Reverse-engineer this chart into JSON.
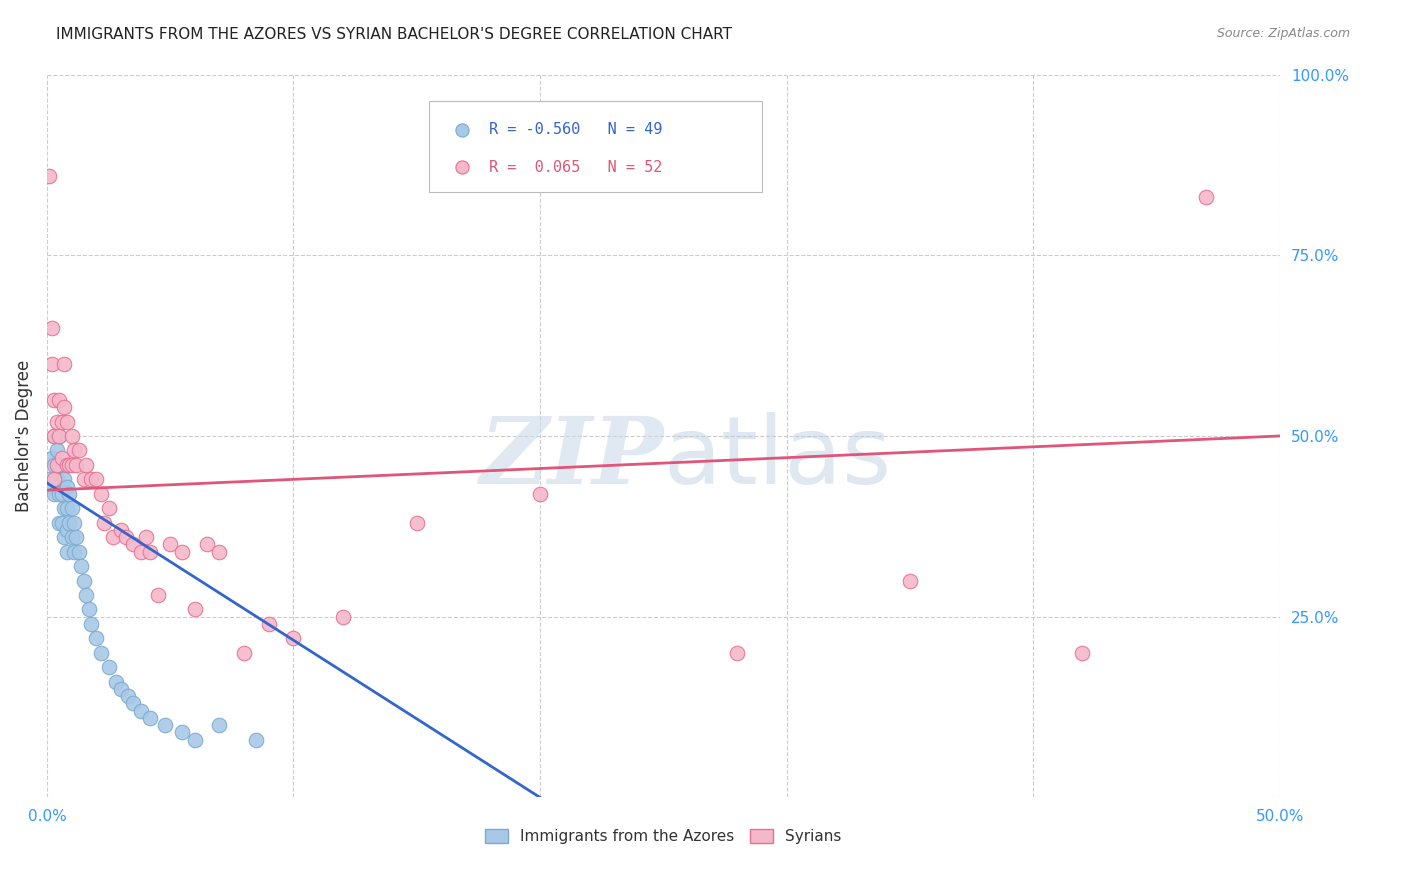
{
  "title": "IMMIGRANTS FROM THE AZORES VS SYRIAN BACHELOR'S DEGREE CORRELATION CHART",
  "source": "Source: ZipAtlas.com",
  "ylabel": "Bachelor's Degree",
  "xlim": [
    0.0,
    0.5
  ],
  "ylim": [
    0.0,
    1.0
  ],
  "yticks": [
    0.0,
    0.25,
    0.5,
    0.75,
    1.0
  ],
  "ytick_labels": [
    "",
    "25.0%",
    "50.0%",
    "75.0%",
    "100.0%"
  ],
  "xticks": [
    0.0,
    0.1,
    0.2,
    0.3,
    0.4,
    0.5
  ],
  "xtick_labels": [
    "0.0%",
    "",
    "",
    "",
    "",
    "50.0%"
  ],
  "azores_color": "#a8c8e8",
  "azores_edge_color": "#7aabce",
  "syrian_color": "#f5b8cb",
  "syrian_edge_color": "#e8708e",
  "azores_R": -0.56,
  "azores_N": 49,
  "syrian_R": 0.065,
  "syrian_N": 52,
  "azores_line_color": "#3366cc",
  "syrian_line_color": "#e05578",
  "background_color": "#ffffff",
  "grid_color": "#cccccc",
  "axis_tick_color": "#3399ff",
  "azores_scatter_x": [
    0.001,
    0.002,
    0.002,
    0.003,
    0.003,
    0.003,
    0.004,
    0.004,
    0.005,
    0.005,
    0.005,
    0.005,
    0.006,
    0.006,
    0.006,
    0.007,
    0.007,
    0.007,
    0.008,
    0.008,
    0.008,
    0.008,
    0.009,
    0.009,
    0.01,
    0.01,
    0.011,
    0.011,
    0.012,
    0.013,
    0.014,
    0.015,
    0.016,
    0.017,
    0.018,
    0.02,
    0.022,
    0.025,
    0.028,
    0.03,
    0.033,
    0.035,
    0.038,
    0.042,
    0.048,
    0.055,
    0.06,
    0.07,
    0.085
  ],
  "azores_scatter_y": [
    0.44,
    0.47,
    0.43,
    0.5,
    0.46,
    0.42,
    0.48,
    0.44,
    0.5,
    0.46,
    0.42,
    0.38,
    0.46,
    0.42,
    0.38,
    0.44,
    0.4,
    0.36,
    0.43,
    0.4,
    0.37,
    0.34,
    0.42,
    0.38,
    0.4,
    0.36,
    0.38,
    0.34,
    0.36,
    0.34,
    0.32,
    0.3,
    0.28,
    0.26,
    0.24,
    0.22,
    0.2,
    0.18,
    0.16,
    0.15,
    0.14,
    0.13,
    0.12,
    0.11,
    0.1,
    0.09,
    0.08,
    0.1,
    0.08
  ],
  "syrian_scatter_x": [
    0.001,
    0.002,
    0.002,
    0.003,
    0.003,
    0.003,
    0.004,
    0.004,
    0.005,
    0.005,
    0.006,
    0.006,
    0.007,
    0.007,
    0.008,
    0.008,
    0.009,
    0.01,
    0.01,
    0.011,
    0.012,
    0.013,
    0.015,
    0.016,
    0.018,
    0.02,
    0.022,
    0.023,
    0.025,
    0.027,
    0.03,
    0.032,
    0.035,
    0.038,
    0.04,
    0.042,
    0.045,
    0.05,
    0.055,
    0.06,
    0.065,
    0.07,
    0.08,
    0.09,
    0.1,
    0.12,
    0.15,
    0.2,
    0.28,
    0.35,
    0.42,
    0.47
  ],
  "syrian_scatter_y": [
    0.86,
    0.65,
    0.6,
    0.55,
    0.5,
    0.44,
    0.52,
    0.46,
    0.55,
    0.5,
    0.52,
    0.47,
    0.6,
    0.54,
    0.52,
    0.46,
    0.46,
    0.5,
    0.46,
    0.48,
    0.46,
    0.48,
    0.44,
    0.46,
    0.44,
    0.44,
    0.42,
    0.38,
    0.4,
    0.36,
    0.37,
    0.36,
    0.35,
    0.34,
    0.36,
    0.34,
    0.28,
    0.35,
    0.34,
    0.26,
    0.35,
    0.34,
    0.2,
    0.24,
    0.22,
    0.25,
    0.38,
    0.42,
    0.2,
    0.3,
    0.2,
    0.83
  ],
  "azores_trendline_x": [
    0.0,
    0.2
  ],
  "azores_trendline_y": [
    0.435,
    0.0
  ],
  "syrian_trendline_x": [
    0.0,
    0.5
  ],
  "syrian_trendline_y": [
    0.425,
    0.5
  ],
  "legend_R1": "R = -0.560",
  "legend_N1": "N = 49",
  "legend_R2": "R =  0.065",
  "legend_N2": "N = 52",
  "watermark_zip": "ZIP",
  "watermark_atlas": "atlas",
  "legend_label1": "Immigrants from the Azores",
  "legend_label2": "Syrians"
}
